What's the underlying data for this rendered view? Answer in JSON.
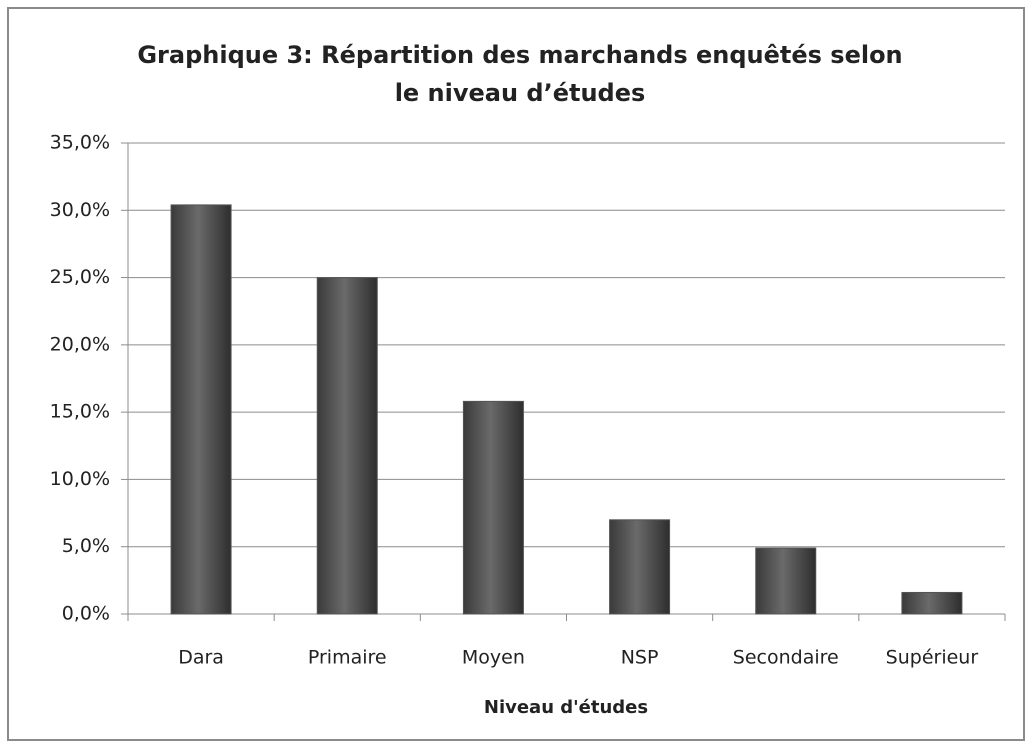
{
  "chart_data": {
    "type": "bar",
    "title": "Graphique 3: Répartition des marchands enquêtés selon le niveau d’études",
    "x_label": "Niveau d'études",
    "categories": [
      "Dara",
      "Primaire",
      "Moyen",
      "NSP",
      "Secondaire",
      "Supérieur"
    ],
    "values": [
      30.4,
      25.0,
      15.8,
      7.0,
      4.9,
      1.6
    ],
    "color": "#545454",
    "ylim": [
      0,
      35
    ],
    "yticks": [
      {
        "value": 0,
        "label": "0,0%"
      },
      {
        "value": 5,
        "label": "5,0%"
      },
      {
        "value": 10,
        "label": "10,0%"
      },
      {
        "value": 15,
        "label": "15,0%"
      },
      {
        "value": 20,
        "label": "20,0%"
      },
      {
        "value": 25,
        "label": "25,0%"
      },
      {
        "value": 30,
        "label": "30,0%"
      },
      {
        "value": 35,
        "label": "35,0%"
      }
    ],
    "grid": true
  }
}
